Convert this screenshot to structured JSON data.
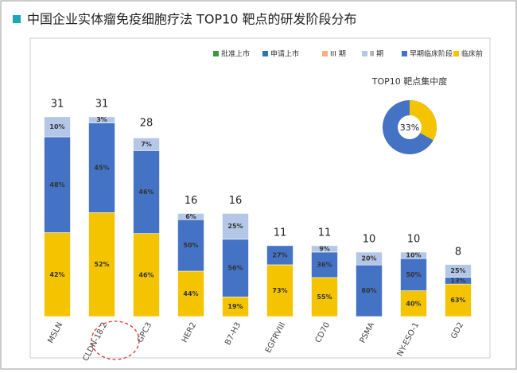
{
  "chart_data": [
    {
      "type": "bar",
      "title": "中国企业实体瘤免疫细胞疗法 TOP10 靶点的研发阶段分布",
      "categories": [
        "MSLN",
        "CLDN-18.2",
        "GPC3",
        "HER2",
        "B7-H3",
        "EGFRVIII",
        "CD70",
        "PSMA",
        "NY-ESO-1",
        "GD2"
      ],
      "totals": [
        31,
        31,
        28,
        16,
        16,
        11,
        11,
        10,
        10,
        8
      ],
      "series": [
        {
          "name": "批准上市",
          "color": "#3a9a3a",
          "values": [
            null,
            null,
            null,
            null,
            null,
            null,
            null,
            null,
            null,
            null
          ]
        },
        {
          "name": "申请上市",
          "color": "#2e75b6",
          "values": [
            null,
            null,
            null,
            null,
            null,
            null,
            null,
            null,
            null,
            null
          ]
        },
        {
          "name": "III 期",
          "color": "#f4b183",
          "values": [
            null,
            null,
            null,
            null,
            null,
            null,
            null,
            null,
            null,
            null
          ]
        },
        {
          "name": "II 期",
          "color": "#b4c7e7",
          "values": [
            10,
            3,
            7,
            6,
            25,
            null,
            9,
            20,
            10,
            25
          ],
          "value_labels": [
            "10%",
            "3%",
            "7%",
            "6%",
            "25%",
            null,
            "9%",
            "20%",
            "10%",
            "25%"
          ]
        },
        {
          "name": "早期临床阶段",
          "color": "#4472c4",
          "values": [
            48,
            45,
            46,
            50,
            56,
            27,
            36,
            80,
            50,
            13
          ],
          "value_labels": [
            "48%",
            "45%",
            "46%",
            "50%",
            "56%",
            "27%",
            "36%",
            "80%",
            "50%",
            "13%"
          ]
        },
        {
          "name": "临床前",
          "color": "#f5c400",
          "values": [
            42,
            52,
            46,
            44,
            19,
            73,
            55,
            null,
            40,
            63
          ],
          "value_labels": [
            "42%",
            "52%",
            "46%",
            "44%",
            "19%",
            "73%",
            "55%",
            null,
            "40%",
            "63%"
          ]
        }
      ]
    },
    {
      "type": "pie",
      "title": "TOP10 靶点集中度",
      "values": [
        33
      ],
      "value_labels": [
        "33%"
      ],
      "colors": [
        "#f5c400",
        "#4472c4"
      ]
    }
  ]
}
